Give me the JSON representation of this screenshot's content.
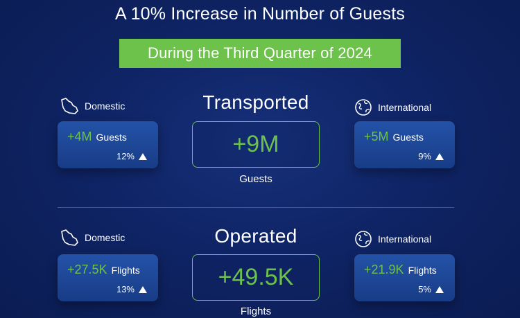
{
  "title": "A 10% Increase in Number of Guests",
  "subtitle": "During the Third Quarter of 2024",
  "transported": {
    "title": "Transported",
    "total_value": "+9M",
    "total_label": "Guests",
    "domestic": {
      "label": "Domestic",
      "value": "+4M",
      "unit": "Guests",
      "change": "12%"
    },
    "international": {
      "label": "International",
      "value": "+5M",
      "unit": "Guests",
      "change": "9%"
    }
  },
  "operated": {
    "title": "Operated",
    "total_value": "+49.5K",
    "total_label": "Flights",
    "domestic": {
      "label": "Domestic",
      "value": "+27.5K",
      "unit": "Flights",
      "change": "13%"
    },
    "international": {
      "label": "International",
      "value": "+21.9K",
      "unit": "Flights",
      "change": "5%"
    }
  },
  "icons": {
    "domestic": "saudi-map-icon",
    "international": "globe-icon",
    "change": "triangle-up-icon"
  },
  "colors": {
    "background": "#0d2160",
    "accent_green": "#6cc24a",
    "card": "#1f4a9c",
    "text": "#ffffff"
  }
}
